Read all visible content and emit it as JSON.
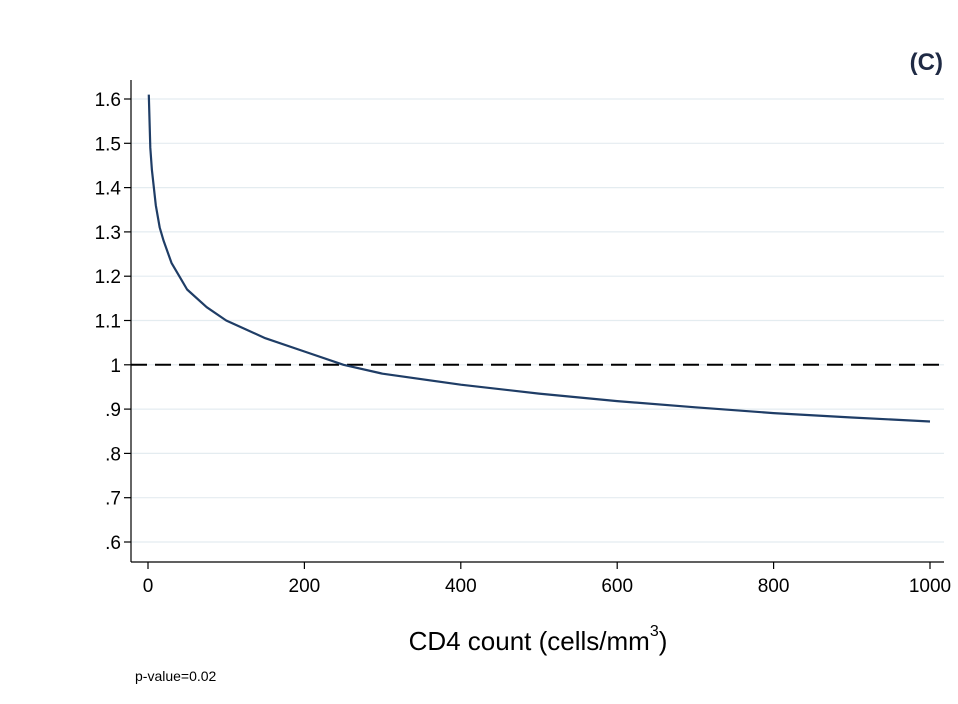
{
  "chart_data": {
    "type": "line",
    "panel_label": "(C)",
    "title": "",
    "xlabel_main": "CD4 count (cells/mm",
    "xlabel_sup": "3",
    "xlabel_close": ")",
    "ylabel": "",
    "note": "p-value=0.02",
    "xlim": [
      0,
      1000
    ],
    "ylim": [
      0.6,
      1.6
    ],
    "x_ticks": [
      0,
      200,
      400,
      600,
      800,
      1000
    ],
    "x_tick_labels": [
      "0",
      "200",
      "400",
      "600",
      "800",
      "1000"
    ],
    "y_ticks": [
      0.6,
      0.7,
      0.8,
      0.9,
      1.0,
      1.1,
      1.2,
      1.3,
      1.4,
      1.5,
      1.6
    ],
    "y_tick_labels": [
      ".6",
      ".7",
      ".8",
      ".9",
      "1",
      "1.1",
      "1.2",
      "1.3",
      "1.4",
      "1.5",
      "1.6"
    ],
    "grid": true,
    "reference_line": {
      "y": 1.0,
      "style": "dashed"
    },
    "series": [
      {
        "color": "#1f3d66",
        "x": [
          1,
          3,
          5,
          10,
          15,
          20,
          30,
          40,
          50,
          75,
          100,
          125,
          150,
          200,
          250,
          300,
          400,
          500,
          600,
          700,
          800,
          900,
          1000
        ],
        "y": [
          1.61,
          1.49,
          1.44,
          1.36,
          1.31,
          1.28,
          1.23,
          1.2,
          1.17,
          1.13,
          1.1,
          1.08,
          1.06,
          1.03,
          1.0,
          0.98,
          0.955,
          0.935,
          0.918,
          0.904,
          0.891,
          0.881,
          0.872
        ]
      }
    ],
    "colors": {
      "grid": "#e4ecf0",
      "axis": "#000000",
      "reference": "#000000",
      "panel_label": "#1f2a44"
    }
  }
}
